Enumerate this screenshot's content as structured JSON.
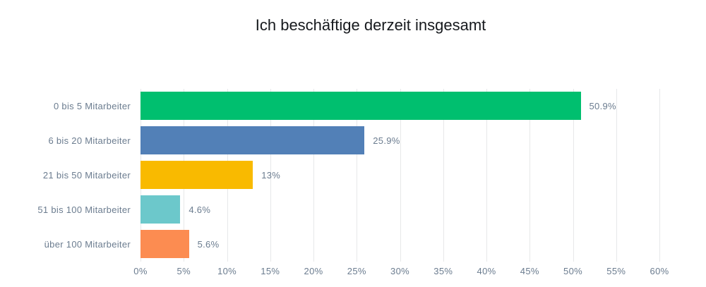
{
  "chart_data": {
    "type": "bar",
    "orientation": "horizontal",
    "title": "Ich beschäftige derzeit insgesamt",
    "categories": [
      "0 bis 5 Mitarbeiter",
      "6 bis 20 Mitarbeiter",
      "21 bis 50 Mitarbeiter",
      "51 bis 100 Mitarbeiter",
      "über 100 Mitarbeiter"
    ],
    "values": [
      50.9,
      25.9,
      13,
      4.6,
      5.6
    ],
    "value_labels": [
      "50.9%",
      "25.9%",
      "13%",
      "4.6%",
      "5.6%"
    ],
    "bar_colors": [
      "#00bf6f",
      "#5280b7",
      "#f9ba00",
      "#6cc8cb",
      "#fc8c51"
    ],
    "xlim": [
      0,
      60
    ],
    "x_tick_step": 5,
    "x_tick_labels": [
      "0%",
      "5%",
      "10%",
      "15%",
      "20%",
      "25%",
      "30%",
      "35%",
      "40%",
      "45%",
      "50%",
      "55%",
      "60%"
    ],
    "grid": true,
    "legend": "none",
    "colors": {
      "label_text": "#6b7c8f",
      "title_text": "#16191d",
      "gridline": "#e7e8e9",
      "background": "#ffffff"
    }
  }
}
